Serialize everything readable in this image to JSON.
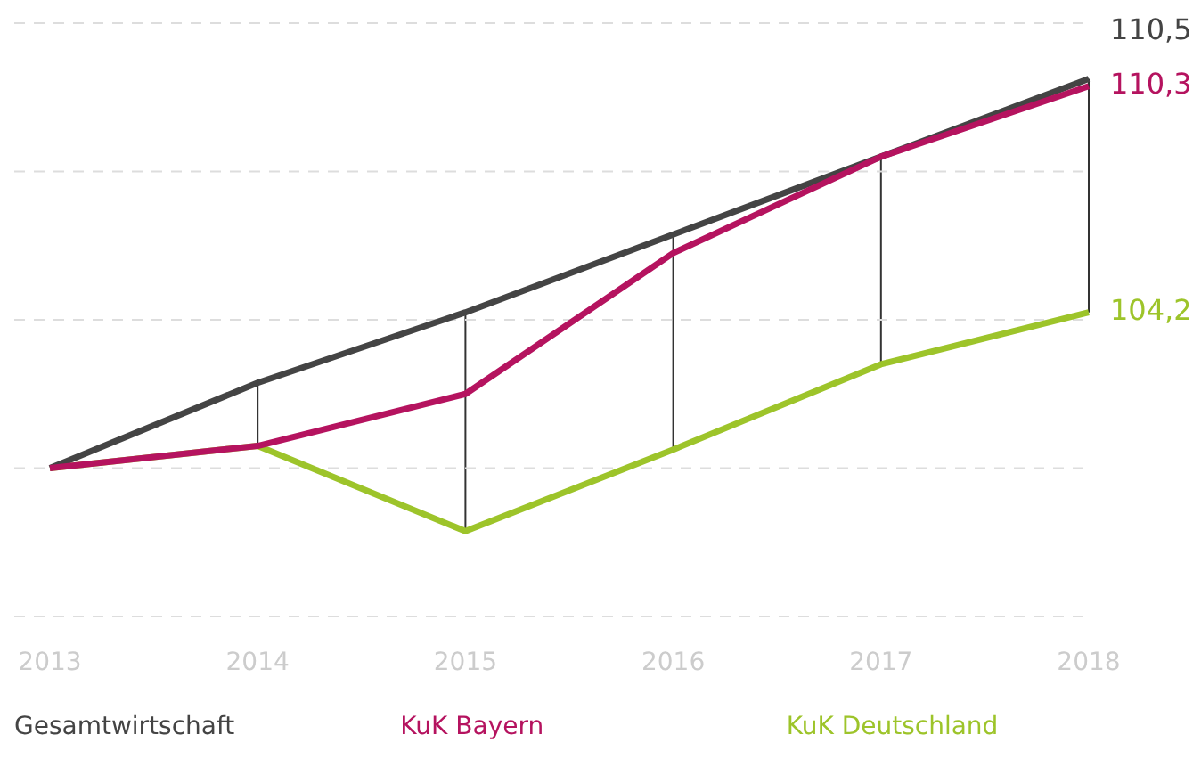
{
  "chart_data": {
    "type": "line",
    "categories": [
      "2013",
      "2014",
      "2015",
      "2016",
      "2017",
      "2018"
    ],
    "series": [
      {
        "name": "KuK Deutschland",
        "color": "#9dc42a",
        "values": [
          100,
          100.6,
          98.3,
          100.5,
          102.8,
          104.2
        ],
        "value_labels": [
          null,
          null,
          null,
          null,
          null,
          "104,2"
        ]
      },
      {
        "name": "Gesamtwirtschaft",
        "color": "#444444",
        "values": [
          100,
          102.3,
          104.2,
          106.3,
          108.4,
          110.5
        ],
        "value_labels": [
          null,
          null,
          null,
          null,
          null,
          "110,5"
        ]
      },
      {
        "name": "KuK Bayern",
        "color": "#b5135f",
        "values": [
          100,
          100.6,
          102,
          105.8,
          108.4,
          110.3
        ],
        "value_labels": [
          null,
          null,
          null,
          null,
          null,
          "110,3"
        ]
      }
    ],
    "ylim": [
      96,
      112
    ],
    "yticks": [
      {
        "value": 96,
        "label": null
      },
      {
        "value": 100,
        "label": null
      },
      {
        "value": 104,
        "label": null
      },
      {
        "value": 108,
        "label": null
      },
      {
        "value": 112,
        "label": null
      }
    ],
    "grid": "y",
    "legend": "bottom",
    "marker": "none",
    "line_style": "solid",
    "tick_labels": "x"
  }
}
